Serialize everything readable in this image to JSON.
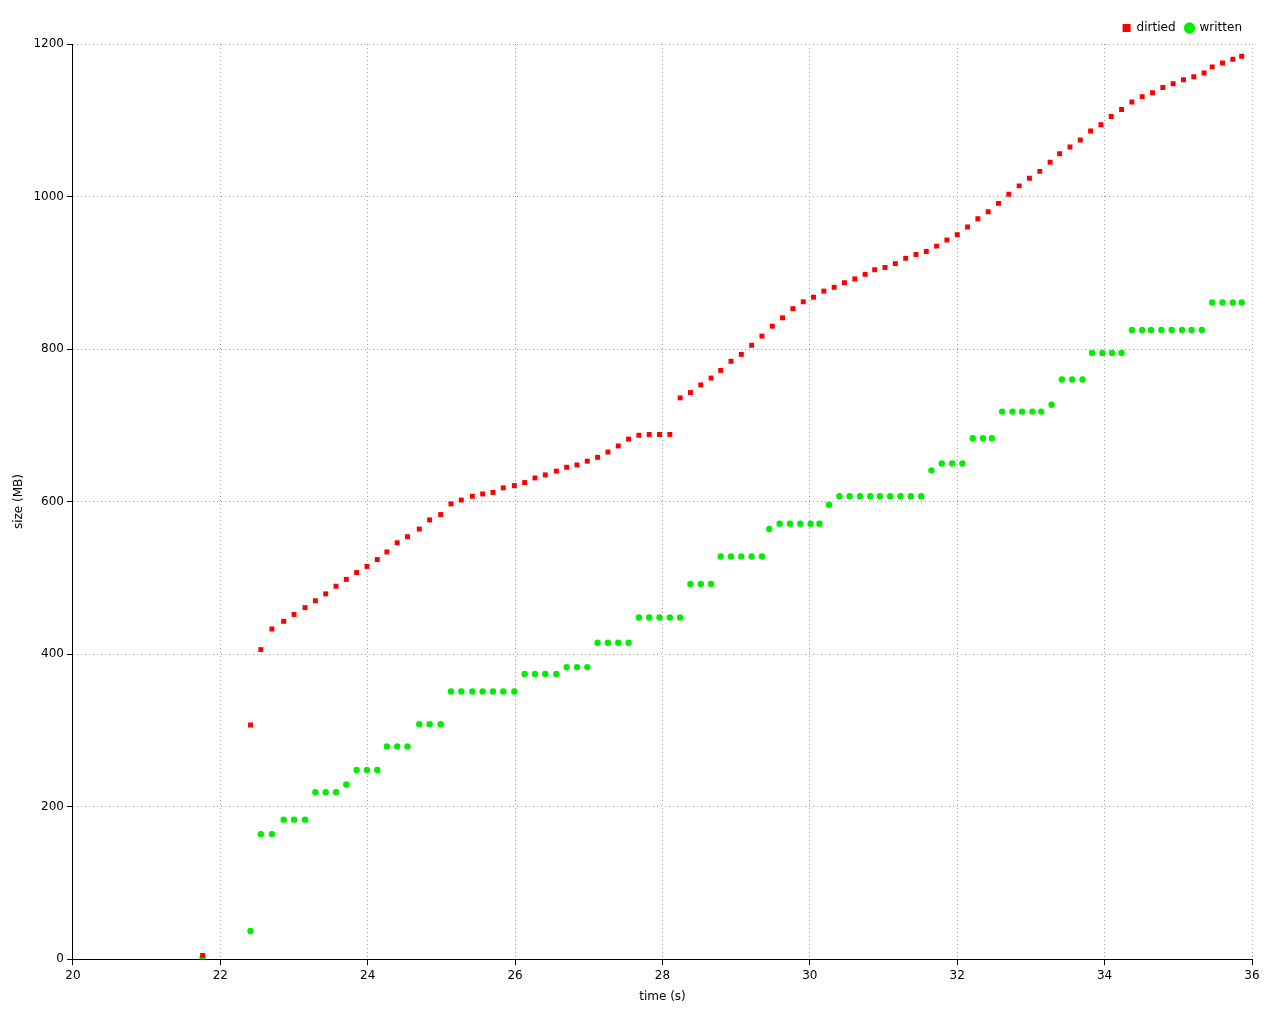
{
  "chart_data": {
    "type": "scatter",
    "xlabel": "time (s)",
    "ylabel": "size (MB)",
    "xlim": [
      20,
      36
    ],
    "xticks": [
      20,
      22,
      24,
      26,
      28,
      30,
      32,
      34,
      36
    ],
    "ylim": [
      0,
      1200
    ],
    "yticks": [
      0,
      200,
      400,
      600,
      800,
      1000,
      1200
    ],
    "grid": true,
    "legend": "top right",
    "line_style": "dotted",
    "series": [
      {
        "name": "dirtied",
        "color": "#ff0000",
        "marker": "square",
        "x": [
          21.76,
          22.41,
          22.55,
          22.7,
          22.86,
          23.0,
          23.15,
          23.29,
          23.43,
          23.57,
          23.71,
          23.85,
          23.99,
          24.13,
          24.26,
          24.4,
          24.54,
          24.7,
          24.84,
          24.99,
          25.13,
          25.27,
          25.42,
          25.56,
          25.7,
          25.84,
          25.99,
          26.13,
          26.27,
          26.41,
          26.56,
          26.7,
          26.84,
          26.98,
          27.12,
          27.26,
          27.4,
          27.54,
          27.68,
          27.82,
          27.96,
          28.1,
          28.24,
          28.38,
          28.52,
          28.66,
          28.79,
          28.93,
          29.07,
          29.21,
          29.35,
          29.49,
          29.63,
          29.77,
          29.91,
          30.05,
          30.19,
          30.33,
          30.47,
          30.61,
          30.75,
          30.88,
          31.02,
          31.16,
          31.3,
          31.44,
          31.58,
          31.72,
          31.86,
          32.0,
          32.14,
          32.28,
          32.42,
          32.56,
          32.7,
          32.84,
          32.98,
          33.12,
          33.26,
          33.39,
          33.53,
          33.67,
          33.81,
          33.95,
          34.09,
          34.23,
          34.37,
          34.51,
          34.65,
          34.79,
          34.93,
          35.07,
          35.21,
          35.35,
          35.46,
          35.6,
          35.74,
          35.86
        ],
        "values": [
          5,
          307,
          406,
          433,
          443,
          452,
          461,
          470,
          479,
          489,
          498,
          507,
          515,
          524,
          534,
          546,
          554,
          564,
          576,
          583,
          597,
          602,
          607,
          610,
          612,
          618,
          621,
          625,
          631,
          635,
          640,
          645,
          648,
          653,
          658,
          665,
          673,
          682,
          687,
          688,
          688,
          688,
          736,
          743,
          753,
          762,
          772,
          784,
          793,
          805,
          817,
          830,
          841,
          853,
          862,
          868,
          876,
          881,
          887,
          892,
          898,
          904,
          907,
          912,
          919,
          924,
          928,
          935,
          943,
          950,
          960,
          971,
          980,
          991,
          1003,
          1014,
          1024,
          1033,
          1045,
          1056,
          1065,
          1074,
          1086,
          1094,
          1105,
          1114,
          1124,
          1131,
          1136,
          1143,
          1148,
          1153,
          1157,
          1162,
          1170,
          1175,
          1180,
          1184
        ]
      },
      {
        "name": "written",
        "color": "#00ee00",
        "marker": "circle",
        "x": [
          21.76,
          22.41,
          22.55,
          22.7,
          22.86,
          23.0,
          23.15,
          23.29,
          23.43,
          23.57,
          23.71,
          23.85,
          23.99,
          24.13,
          24.26,
          24.4,
          24.54,
          24.7,
          24.84,
          24.99,
          25.13,
          25.27,
          25.42,
          25.56,
          25.7,
          25.84,
          25.99,
          26.13,
          26.27,
          26.41,
          26.56,
          26.7,
          26.84,
          26.98,
          27.12,
          27.26,
          27.4,
          27.54,
          27.68,
          27.82,
          27.96,
          28.1,
          28.24,
          28.38,
          28.52,
          28.66,
          28.79,
          28.93,
          29.07,
          29.21,
          29.35,
          29.45,
          29.59,
          29.73,
          29.87,
          30.01,
          30.13,
          30.26,
          30.4,
          30.54,
          30.68,
          30.82,
          30.95,
          31.09,
          31.23,
          31.37,
          31.51,
          31.65,
          31.79,
          31.93,
          32.07,
          32.21,
          32.35,
          32.47,
          32.61,
          32.75,
          32.88,
          33.02,
          33.14,
          33.28,
          33.42,
          33.56,
          33.7,
          33.83,
          33.97,
          34.1,
          34.23,
          34.37,
          34.51,
          34.63,
          34.77,
          34.91,
          35.05,
          35.18,
          35.32,
          35.46,
          35.6,
          35.74,
          35.86
        ],
        "values": [
          2,
          37,
          164,
          164,
          183,
          183,
          183,
          219,
          219,
          219,
          229,
          248,
          248,
          248,
          279,
          279,
          279,
          308,
          308,
          308,
          351,
          351,
          351,
          351,
          351,
          351,
          351,
          374,
          374,
          374,
          374,
          383,
          383,
          383,
          415,
          415,
          415,
          415,
          448,
          448,
          448,
          448,
          448,
          492,
          492,
          492,
          528,
          528,
          528,
          528,
          528,
          564,
          571,
          571,
          571,
          571,
          571,
          596,
          607,
          607,
          607,
          607,
          607,
          607,
          607,
          607,
          607,
          641,
          650,
          650,
          650,
          683,
          683,
          683,
          718,
          718,
          718,
          718,
          718,
          727,
          760,
          760,
          760,
          795,
          795,
          795,
          795,
          825,
          825,
          825,
          825,
          825,
          825,
          825,
          825,
          861,
          861,
          861,
          861
        ]
      }
    ]
  }
}
